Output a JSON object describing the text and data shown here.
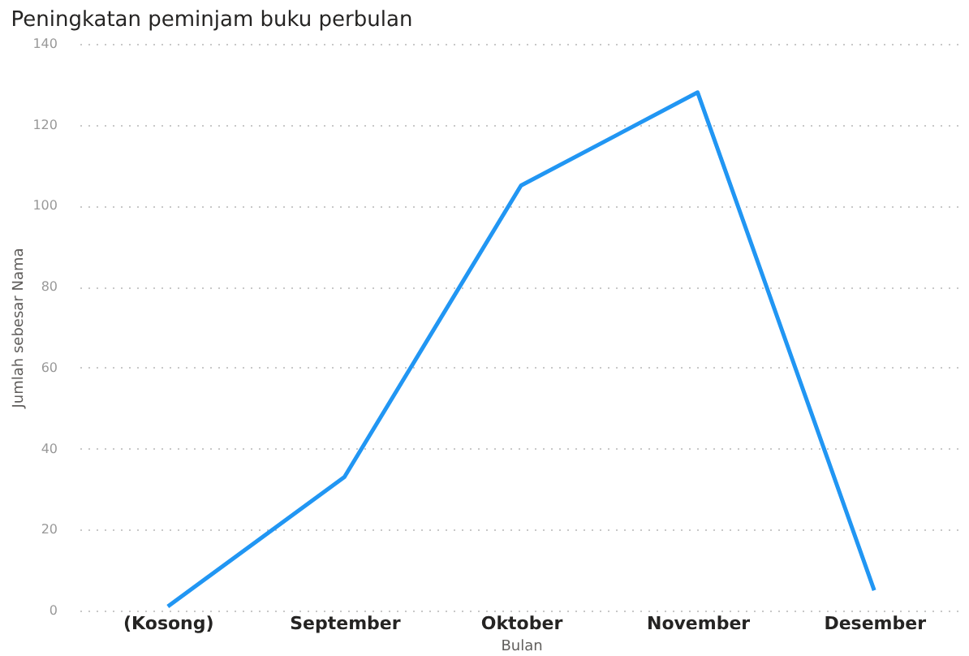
{
  "chart_data": {
    "type": "line",
    "title": "Peningkatan peminjam buku perbulan",
    "categories": [
      "(Kosong)",
      "September",
      "Oktober",
      "November",
      "Desember"
    ],
    "series": [
      {
        "color": "#2196f3",
        "values": [
          1,
          33,
          105,
          128,
          5
        ]
      }
    ],
    "xlabel": "Bulan",
    "ylabel": "Jumlah sebesar Nama",
    "ylim": [
      0,
      140
    ],
    "yticks": [
      0,
      20,
      40,
      60,
      80,
      100,
      120,
      140
    ],
    "grid": "y",
    "marker": "none",
    "line_style": "solid",
    "legend": false
  }
}
